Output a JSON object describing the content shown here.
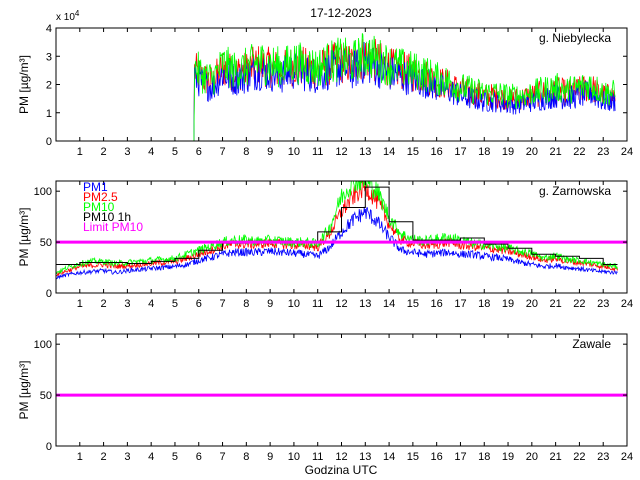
{
  "figure": {
    "title": "17-12-2023",
    "xlabel": "Godzina UTC"
  },
  "chart_data": [
    {
      "type": "line",
      "station": "g. Niebylecka",
      "ylabel": "PM [µg/m³]",
      "y_exponent_label": "x 10",
      "y_exponent": "4",
      "xlim": [
        0,
        24
      ],
      "ylim": [
        0,
        40000
      ],
      "x_ticks": [
        "1",
        "2",
        "3",
        "4",
        "5",
        "6",
        "7",
        "8",
        "9",
        "10",
        "11",
        "12",
        "13",
        "14",
        "15",
        "16",
        "17",
        "18",
        "19",
        "20",
        "21",
        "22",
        "23",
        "24"
      ],
      "y_ticks": [
        "0",
        "1",
        "2",
        "3",
        "4"
      ],
      "y_tick_values": [
        0,
        10000,
        20000,
        30000,
        40000
      ],
      "grid": false,
      "legend": "none",
      "series": [
        {
          "color": "#ff0000",
          "x": [
            0,
            5.8,
            5.82,
            6.2,
            6.6,
            7,
            7.5,
            8,
            8.5,
            9,
            9.5,
            10,
            10.5,
            11,
            11.5,
            12,
            12.5,
            13,
            13.5,
            14,
            14.5,
            15,
            15.5,
            16,
            16.5,
            17,
            17.5,
            18,
            18.5,
            19,
            19.5,
            20,
            20.5,
            21,
            21.5,
            22,
            22.5,
            23,
            23.5
          ],
          "y": [
            0,
            0,
            25000,
            22000,
            21000,
            26000,
            24000,
            25000,
            27000,
            26000,
            25000,
            27000,
            26000,
            25000,
            27000,
            28000,
            27000,
            30000,
            28000,
            26000,
            25000,
            24000,
            23000,
            21000,
            20000,
            18000,
            17000,
            16000,
            16000,
            15000,
            15000,
            16000,
            17000,
            18000,
            17000,
            18000,
            19000,
            16000,
            16000
          ]
        },
        {
          "color": "#0000ff",
          "x": [
            0,
            5.8,
            5.82,
            6.2,
            6.6,
            7,
            7.5,
            8,
            8.5,
            9,
            9.5,
            10,
            10.5,
            11,
            11.5,
            12,
            12.5,
            13,
            13.5,
            14,
            14.5,
            15,
            15.5,
            16,
            16.5,
            17,
            17.5,
            18,
            18.5,
            19,
            19.5,
            20,
            20.5,
            21,
            21.5,
            22,
            22.5,
            23,
            23.5
          ],
          "y": [
            0,
            0,
            23000,
            20000,
            19000,
            24000,
            22000,
            23000,
            25000,
            24000,
            23000,
            25000,
            24000,
            23000,
            25000,
            26000,
            25000,
            28000,
            26000,
            24000,
            23000,
            22000,
            21000,
            19000,
            18000,
            16000,
            15000,
            14000,
            14000,
            13000,
            13000,
            14000,
            15000,
            16000,
            15000,
            16000,
            17000,
            14000,
            14000
          ]
        },
        {
          "color": "#00ff00",
          "x": [
            0,
            5.8,
            5.82,
            6.2,
            6.6,
            7,
            7.5,
            8,
            8.5,
            9,
            9.5,
            10,
            10.5,
            11,
            11.5,
            12,
            12.5,
            13,
            13.5,
            14,
            14.5,
            15,
            15.5,
            16,
            16.5,
            17,
            17.5,
            18,
            18.5,
            19,
            19.5,
            20,
            20.5,
            21,
            21.5,
            22,
            22.5,
            23,
            23.5
          ],
          "y": [
            0,
            0,
            26000,
            23000,
            22000,
            27000,
            25000,
            26000,
            28000,
            27000,
            26000,
            28000,
            27000,
            26000,
            28000,
            29000,
            28000,
            31000,
            29000,
            27000,
            26000,
            25000,
            24000,
            22000,
            21000,
            19000,
            18000,
            17000,
            17000,
            16000,
            16000,
            17000,
            18000,
            19000,
            18000,
            19000,
            20000,
            17000,
            17000
          ]
        }
      ]
    },
    {
      "type": "line",
      "station": "g. Zarnowska",
      "ylabel": "PM [µg/m³]",
      "xlim": [
        0,
        24
      ],
      "ylim": [
        0,
        110
      ],
      "x_ticks": [
        "1",
        "2",
        "3",
        "4",
        "5",
        "6",
        "7",
        "8",
        "9",
        "10",
        "11",
        "12",
        "13",
        "14",
        "15",
        "16",
        "17",
        "18",
        "19",
        "20",
        "21",
        "22",
        "23",
        "24"
      ],
      "y_ticks": [
        "0",
        "50",
        "100"
      ],
      "y_tick_values": [
        0,
        50,
        100
      ],
      "grid": false,
      "legend": "top-left",
      "limit": {
        "name": "Limit PM10",
        "value": 50,
        "color": "#ff00ff"
      },
      "series": [
        {
          "name": "PM1",
          "color": "#0000ff",
          "x": [
            0,
            0.5,
            1,
            1.5,
            2,
            2.5,
            3,
            3.5,
            4,
            4.5,
            5,
            5.5,
            6,
            6.5,
            7,
            7.5,
            8,
            8.5,
            9,
            9.5,
            10,
            10.5,
            11,
            11.5,
            12,
            12.5,
            13,
            13.5,
            14,
            14.5,
            15,
            15.5,
            16,
            16.5,
            17,
            17.5,
            18,
            18.5,
            19,
            19.5,
            20,
            20.5,
            21,
            21.5,
            22,
            22.5,
            23,
            23.6
          ],
          "y": [
            15,
            18,
            20,
            21,
            22,
            20,
            22,
            23,
            24,
            25,
            26,
            28,
            32,
            35,
            38,
            40,
            40,
            40,
            41,
            40,
            39,
            38,
            36,
            45,
            60,
            72,
            80,
            70,
            55,
            42,
            40,
            38,
            39,
            40,
            38,
            38,
            36,
            35,
            33,
            30,
            28,
            26,
            27,
            25,
            24,
            22,
            21,
            20
          ]
        },
        {
          "name": "PM2.5",
          "color": "#ff0000",
          "x": [
            0,
            0.5,
            1,
            1.5,
            2,
            2.5,
            3,
            3.5,
            4,
            4.5,
            5,
            5.5,
            6,
            6.5,
            7,
            7.5,
            8,
            8.5,
            9,
            9.5,
            10,
            10.5,
            11,
            11.5,
            12,
            12.5,
            13,
            13.5,
            14,
            14.5,
            15,
            15.5,
            16,
            16.5,
            17,
            17.5,
            18,
            18.5,
            19,
            19.5,
            20,
            20.5,
            21,
            21.5,
            22,
            22.5,
            23,
            23.6
          ],
          "y": [
            18,
            22,
            26,
            27,
            28,
            26,
            27,
            28,
            29,
            30,
            31,
            34,
            38,
            42,
            46,
            48,
            48,
            48,
            49,
            48,
            47,
            47,
            45,
            58,
            80,
            95,
            105,
            90,
            68,
            52,
            49,
            47,
            48,
            50,
            47,
            46,
            44,
            43,
            41,
            38,
            36,
            32,
            34,
            31,
            30,
            28,
            26,
            24
          ]
        },
        {
          "name": "PM10",
          "color": "#00ff00",
          "x": [
            0,
            0.5,
            1,
            1.5,
            2,
            2.5,
            3,
            3.5,
            4,
            4.5,
            5,
            5.5,
            6,
            6.5,
            7,
            7.5,
            8,
            8.5,
            9,
            9.5,
            10,
            10.5,
            11,
            11.5,
            12,
            12.5,
            13,
            13.5,
            14,
            14.5,
            15,
            15.5,
            16,
            16.5,
            17,
            17.5,
            18,
            18.5,
            19,
            19.5,
            20,
            20.5,
            21,
            21.5,
            22,
            22.5,
            23,
            23.6
          ],
          "y": [
            20,
            25,
            29,
            31,
            31,
            29,
            30,
            31,
            32,
            33,
            34,
            38,
            42,
            46,
            50,
            52,
            52,
            51,
            52,
            51,
            50,
            50,
            48,
            64,
            95,
            110,
            110,
            100,
            75,
            58,
            53,
            51,
            53,
            55,
            52,
            49,
            47,
            46,
            44,
            41,
            39,
            34,
            37,
            33,
            32,
            30,
            28,
            26
          ]
        },
        {
          "name": "PM10 1h",
          "color": "#000000",
          "step": true,
          "x": [
            0,
            1,
            2,
            3,
            4,
            5,
            6,
            7,
            8,
            9,
            10,
            11,
            12,
            13,
            14,
            15,
            16,
            17,
            18,
            19,
            20,
            21,
            22,
            23,
            23.6
          ],
          "y": [
            28,
            30,
            30,
            29,
            31,
            34,
            42,
            49,
            51,
            51,
            50,
            60,
            84,
            104,
            70,
            52,
            52,
            54,
            48,
            44,
            38,
            36,
            34,
            28,
            28
          ]
        }
      ]
    },
    {
      "type": "line",
      "station": "Zawale",
      "ylabel": "PM [µg/m³]",
      "xlim": [
        0,
        24
      ],
      "ylim": [
        0,
        110
      ],
      "x_ticks": [
        "1",
        "2",
        "3",
        "4",
        "5",
        "6",
        "7",
        "8",
        "9",
        "10",
        "11",
        "12",
        "13",
        "14",
        "15",
        "16",
        "17",
        "18",
        "19",
        "20",
        "21",
        "22",
        "23",
        "24"
      ],
      "y_ticks": [
        "0",
        "50",
        "100"
      ],
      "y_tick_values": [
        0,
        50,
        100
      ],
      "grid": false,
      "legend": "none",
      "limit": {
        "value": 50,
        "color": "#ff00ff"
      },
      "series": []
    }
  ]
}
